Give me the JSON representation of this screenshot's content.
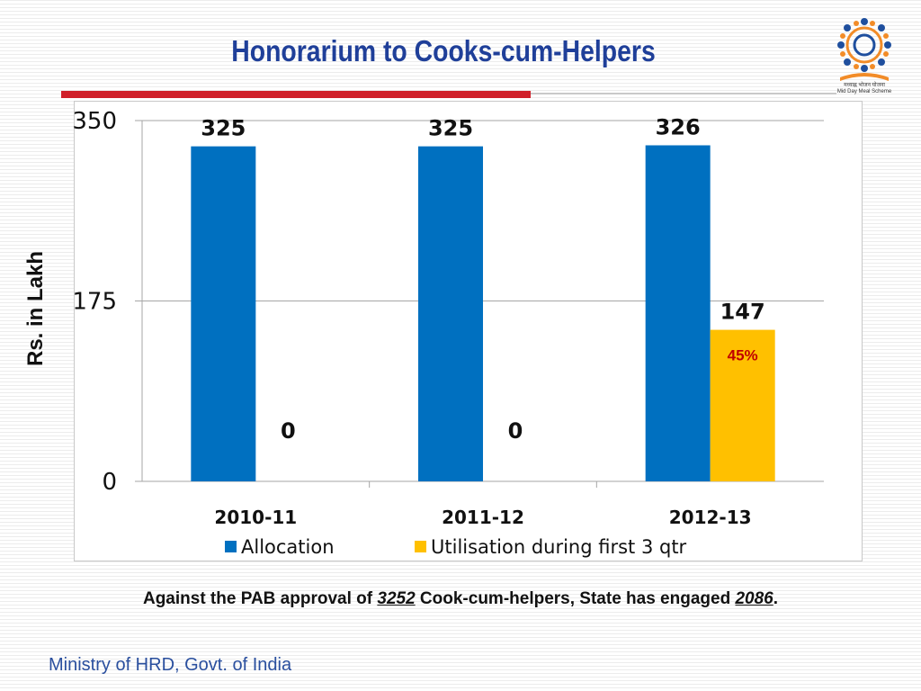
{
  "slide": {
    "title": "Honorarium to Cooks-cum-Helpers",
    "footer": "Ministry of HRD, Govt. of India",
    "footnote": {
      "part1": "Against the PAB approval of ",
      "approved": "3252",
      "part2": " Cook-cum-helpers, State has engaged ",
      "engaged": "2086",
      "part3": "."
    },
    "logo": {
      "icon": "mid-day-meal-logo",
      "caption_hindi": "मध्याह्न भोजन योजना",
      "caption": "Mid Day Meal Scheme"
    },
    "colors": {
      "title": "#1f3f99",
      "accent_rule": "#d0202a",
      "footer": "#2a4f9e"
    }
  },
  "chart_data": {
    "type": "bar",
    "ylabel": "Rs. in Lakh",
    "xlabel": "",
    "ylim": [
      0,
      350
    ],
    "yticks": [
      0,
      175,
      350
    ],
    "grid": true,
    "legend_position": "bottom",
    "categories": [
      "2010-11",
      "2011-12",
      "2012-13"
    ],
    "series": [
      {
        "name": "Allocation",
        "color": "#0070c0",
        "values": [
          325,
          325,
          326
        ],
        "labels": [
          "325",
          "325",
          "326"
        ]
      },
      {
        "name": "Utilisation during first 3 qtr",
        "color": "#ffc000",
        "values": [
          0,
          0,
          147
        ],
        "labels": [
          "0",
          "0",
          "147"
        ]
      }
    ],
    "annotations": [
      {
        "series": 1,
        "category": 2,
        "text": "45%",
        "color": "#c00000"
      }
    ]
  }
}
